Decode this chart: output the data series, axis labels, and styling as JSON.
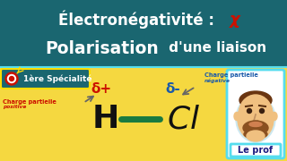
{
  "bg_top_color": "#1a6670",
  "bg_bottom_color": "#f5d840",
  "title_line1_plain": "Électronégativité : ",
  "title_chi": "χ",
  "title_line2_bold": "Polarisation",
  "title_line2_rest": " d'une liaison",
  "title_color": "#ffffff",
  "title_chi_color": "#cc1100",
  "divider_color": "#55ddee",
  "badge_bg": "#1a6670",
  "badge_border": "#ffdd00",
  "badge_text_top": "1ère Spécialité",
  "badge_text_color": "#ffffff",
  "delta_plus_color": "#cc1100",
  "delta_minus_color": "#1a5aaa",
  "H_color": "#111111",
  "Cl_color": "#111111",
  "bond_color": "#1a7a40",
  "charge_pos_color": "#cc1100",
  "charge_neg_color": "#1a5aaa",
  "le_prof_border": "#55ddee",
  "le_prof_bg": "#ffffff",
  "le_prof_text_color": "#1a1a80",
  "face_skin": "#f0c080",
  "face_hair": "#6a3510",
  "face_beard": "#8a5020"
}
